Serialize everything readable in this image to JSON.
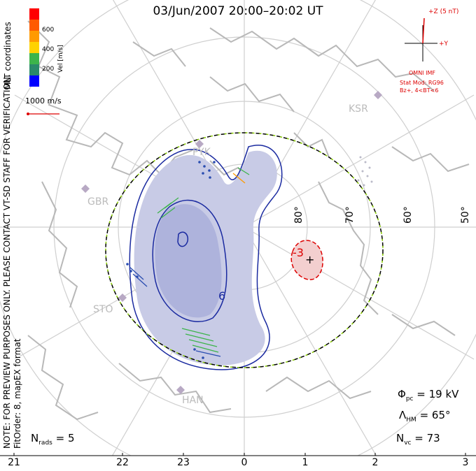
{
  "title": "03/Jun/2007 20:00–20:02 UT",
  "side_text": {
    "coords": "MLT coordinates",
    "preview": "NOTE: FOR PREVIEW PURPOSES ONLY. PLEASE CONTACT VT-SD STAFF FOR VERIFICATION.",
    "fit": "FitOrder: 8, mapEX format"
  },
  "colorbar": {
    "label": "Vel [m/s]",
    "ticks": [
      "600",
      "400",
      "200"
    ],
    "colors": [
      "#ff0000",
      "#ff5a00",
      "#ff9a00",
      "#ffd200",
      "#3cb44b",
      "#2a8a6a",
      "#2a4db0",
      "#0000ff"
    ]
  },
  "reference_vector": "1000 m/s",
  "latitudes": [
    "80°",
    "70°",
    "60°",
    "50°"
  ],
  "radars": [
    "KSR",
    "GBR",
    "STO",
    "HAN",
    "PYK"
  ],
  "contours": {
    "negative_label": "-3",
    "positive_label": "6",
    "marker": "+"
  },
  "imf": {
    "z_label": "+Z (5 nT)",
    "y_label": "+Y",
    "source": "OMNI IMF",
    "model": "Stat Mod: RG96",
    "condition": "Bz+, 4<BT<6"
  },
  "stats": {
    "phi_pc": "19 kV",
    "lambda_hm": "65°",
    "n_vc": "73",
    "n_rads": "5"
  },
  "mlt_labels": [
    "21",
    "22",
    "23",
    "0",
    "1",
    "2",
    "3"
  ]
}
